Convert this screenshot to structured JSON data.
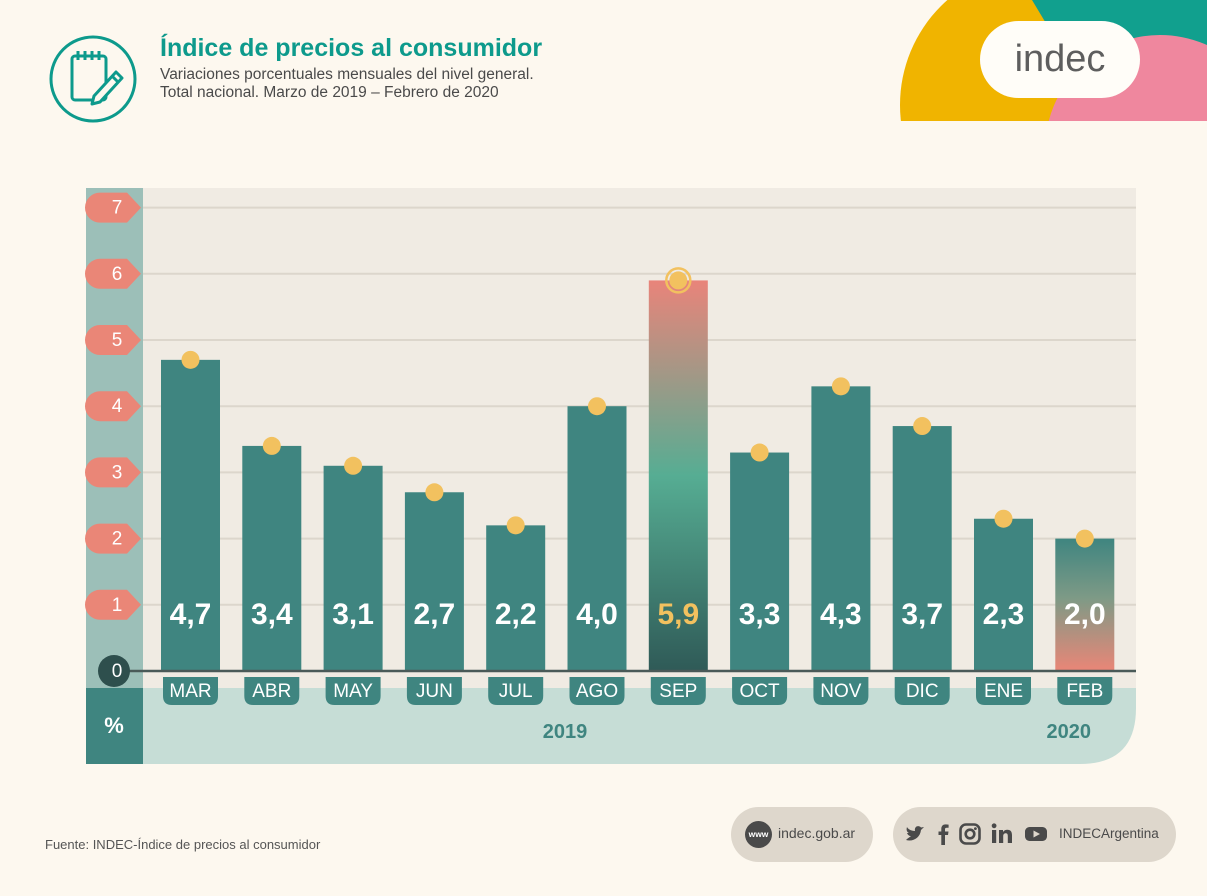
{
  "header": {
    "icon": "notepad-pencil-icon",
    "title": "Índice de precios al consumidor",
    "subtitle_line1": "Variaciones porcentuales mensuales del nivel general.",
    "subtitle_line2": "Total nacional. Marzo de 2019 – Febrero de 2020"
  },
  "logo": {
    "text": "indec"
  },
  "colors": {
    "bar": "#3f8580",
    "highlight_top": "#e9847a",
    "highlight_mid": "#56ad93",
    "highlight_bottom": "#2f5a57",
    "marker": "#f2c15f",
    "axis_label": "#ea8677",
    "axis_strip": "#9cbfb8",
    "plot_bg": "#f0ebe3",
    "label_band": "#c6ddd6",
    "title": "#0d9a8c"
  },
  "chart_data": {
    "type": "bar",
    "categories": [
      "MAR",
      "ABR",
      "MAY",
      "JUN",
      "JUL",
      "AGO",
      "SEP",
      "OCT",
      "NOV",
      "DIC",
      "ENE",
      "FEB"
    ],
    "values": [
      4.7,
      3.4,
      3.1,
      2.7,
      2.2,
      4.0,
      5.9,
      3.3,
      4.3,
      3.7,
      2.3,
      2.0
    ],
    "value_labels": [
      "4,7",
      "3,4",
      "3,1",
      "2,7",
      "2,2",
      "4,0",
      "5,9",
      "3,3",
      "4,3",
      "3,7",
      "2,3",
      "2,0"
    ],
    "highlight": [
      "SEP"
    ],
    "years": [
      {
        "label": "2019",
        "center": 5
      },
      {
        "label": "2020",
        "center": 11
      }
    ],
    "yticks": [
      0,
      1,
      2,
      3,
      4,
      5,
      6,
      7
    ],
    "ylim": [
      0,
      7
    ],
    "ylabel": "%",
    "title": "Índice de precios al consumidor",
    "grid": true
  },
  "footer": {
    "source": "Fuente: INDEC-Índice de precios al consumidor",
    "web_icon_text": "www",
    "web": "indec.gob.ar",
    "social_icons": [
      "twitter-icon",
      "facebook-icon",
      "instagram-icon",
      "linkedin-icon",
      "youtube-icon"
    ],
    "social_handle": "INDECArgentina"
  }
}
